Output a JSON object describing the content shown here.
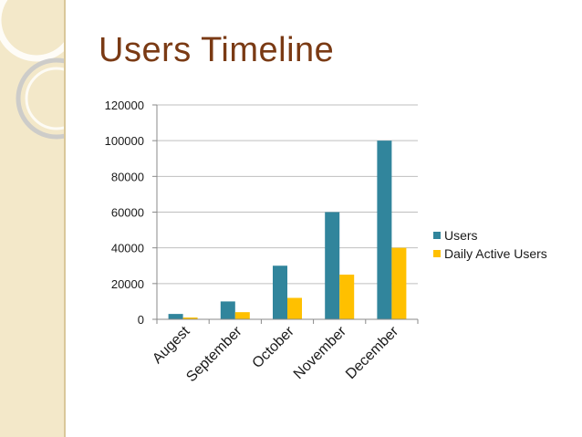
{
  "slide": {
    "title": "Users Timeline"
  },
  "theme": {
    "sidebar_bg": "#f3e8c9",
    "title_color": "#7a3a14",
    "grid_color": "#bfbfbf"
  },
  "chart_data": {
    "type": "bar",
    "title": "",
    "xlabel": "",
    "ylabel": "",
    "categories": [
      "Augest",
      "September",
      "October",
      "November",
      "December"
    ],
    "series": [
      {
        "name": "Users",
        "color": "#31859c",
        "values": [
          3000,
          10000,
          30000,
          60000,
          100000
        ]
      },
      {
        "name": "Daily Active Users",
        "color": "#ffc000",
        "values": [
          1000,
          4000,
          12000,
          25000,
          40000
        ]
      }
    ],
    "ylim": [
      0,
      120000
    ],
    "yticks": [
      0,
      20000,
      40000,
      60000,
      80000,
      100000,
      120000
    ],
    "grid": true,
    "legend_position": "right"
  }
}
